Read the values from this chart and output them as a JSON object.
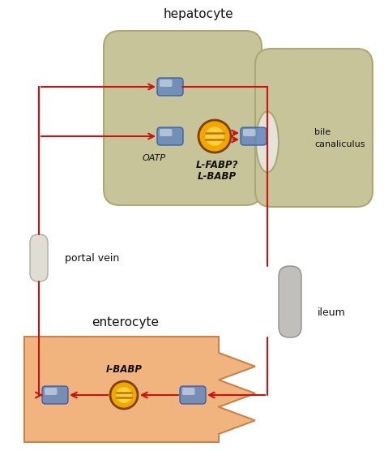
{
  "bg_color": "#ffffff",
  "hepatocyte_color": "#c8c49a",
  "hepatocyte_edge": "#aaa875",
  "enterocyte_color": "#f2b47e",
  "enterocyte_edge": "#c8824a",
  "portal_vein_color": "#e0ddd5",
  "portal_vein_edge": "#b0aba0",
  "ileum_color": "#c0bfbc",
  "ileum_edge": "#909090",
  "bile_oval_color": "#e5e3d8",
  "bile_oval_edge": "#aaa875",
  "arrow_color": "#cc1111",
  "transporter_fill": "#6688bb",
  "transporter_edge": "#3355aa",
  "protein_outer": "#f0a800",
  "protein_inner": "#ffd040",
  "protein_line": "#c07800",
  "text_color": "#111111",
  "hep_label": "hepatocyte",
  "ent_label": "enterocyte",
  "pv_label": "portal vein",
  "il_label": "ileum",
  "bile_label1": "bile",
  "bile_label2": "canaliculus",
  "oatp_label": "OATP",
  "lfabp_label": "L-FABP?",
  "lbabp_label": "L-BABP",
  "ibabp_label": "I-BABP"
}
